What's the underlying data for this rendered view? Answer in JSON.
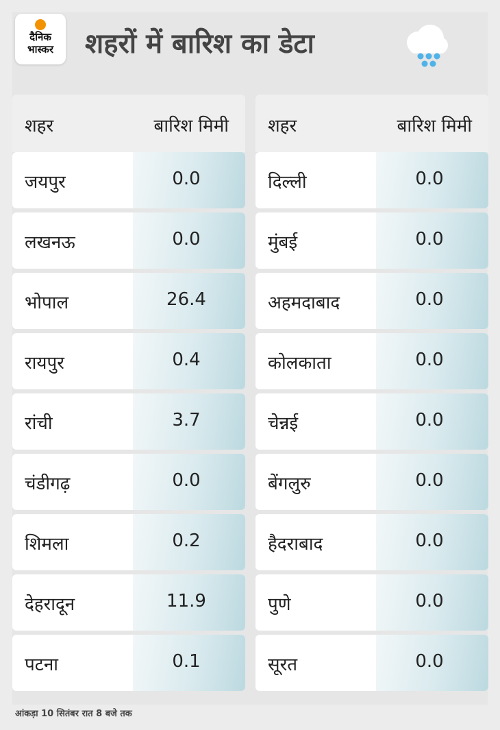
{
  "logo": {
    "line1": "दैनिक",
    "line2": "भास्कर",
    "accent": "#f39200"
  },
  "title": "शहरों में बारिश का डेटा",
  "icon": "rain-cloud-icon",
  "left_table": {
    "headers": {
      "city": "शहर",
      "rain": "बारिश मिमी"
    },
    "rows": [
      {
        "city": "जयपुर",
        "value": "0.0"
      },
      {
        "city": "लखनऊ",
        "value": "0.0"
      },
      {
        "city": "भोपाल",
        "value": "26.4"
      },
      {
        "city": "रायपुर",
        "value": "0.4"
      },
      {
        "city": "रांची",
        "value": "3.7"
      },
      {
        "city": "चंडीगढ़",
        "value": "0.0"
      },
      {
        "city": "शिमला",
        "value": "0.2"
      },
      {
        "city": "देहरादून",
        "value": "11.9"
      },
      {
        "city": "पटना",
        "value": "0.1"
      }
    ]
  },
  "right_table": {
    "headers": {
      "city": "शहर",
      "rain": "बारिश मिमी"
    },
    "rows": [
      {
        "city": "दिल्ली",
        "value": "0.0"
      },
      {
        "city": "मुंबई",
        "value": "0.0"
      },
      {
        "city": "अहमदाबाद",
        "value": "0.0"
      },
      {
        "city": "कोलकाता",
        "value": "0.0"
      },
      {
        "city": "चेन्नई",
        "value": "0.0"
      },
      {
        "city": "बेंगलुरु",
        "value": "0.0"
      },
      {
        "city": "हैदराबाद",
        "value": "0.0"
      },
      {
        "city": "पुणे",
        "value": "0.0"
      },
      {
        "city": "सूरत",
        "value": "0.0"
      }
    ]
  },
  "footnote": "आंकड़ा 10 सितंबर रात 8 बजे तक"
}
